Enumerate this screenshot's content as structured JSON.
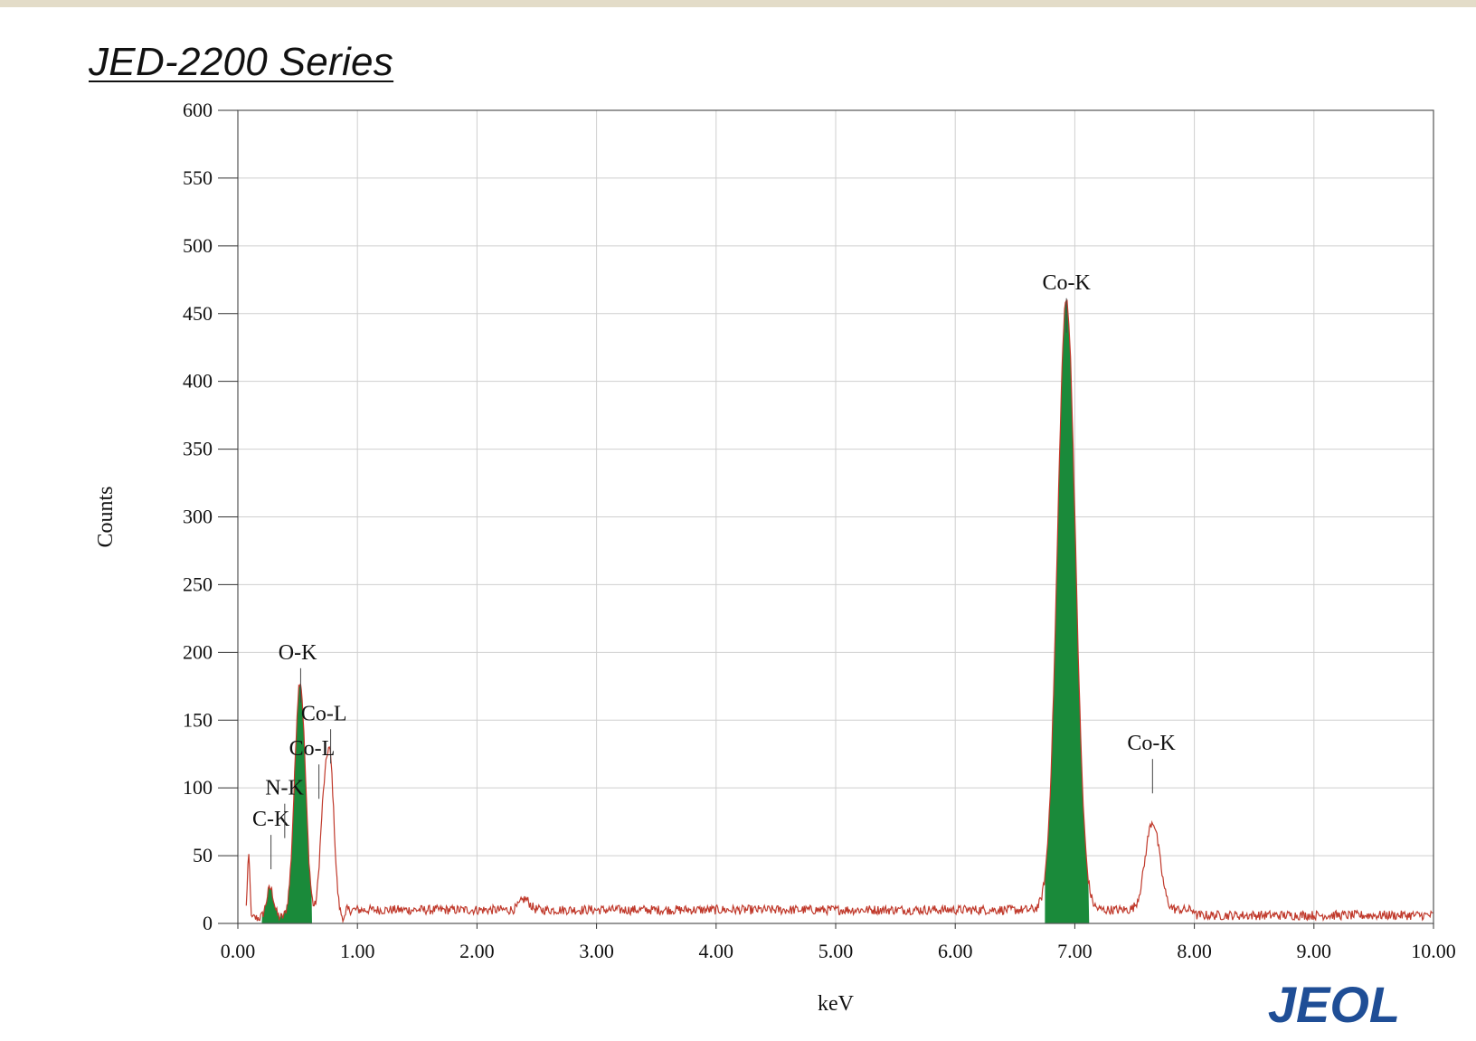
{
  "header": {
    "title": "JED-2200 Series"
  },
  "logo": {
    "text": "JEOL",
    "color": "#1f4e96"
  },
  "chart_data": {
    "type": "area",
    "xlabel": "keV",
    "ylabel": "Counts",
    "xlim": [
      0,
      10
    ],
    "ylim": [
      0,
      600
    ],
    "x_ticks": [
      "0.00",
      "1.00",
      "2.00",
      "3.00",
      "4.00",
      "5.00",
      "6.00",
      "7.00",
      "8.00",
      "9.00",
      "10.00"
    ],
    "y_ticks": [
      "0",
      "50",
      "100",
      "150",
      "200",
      "250",
      "300",
      "350",
      "400",
      "450",
      "500",
      "550",
      "600"
    ],
    "grid": true,
    "colors": {
      "spectrum": "#c0392b",
      "peak_fill": "#1a8a3a",
      "grid": "#cfcfcf"
    },
    "spectrum_baseline": 10,
    "spectrum_peaks": [
      {
        "x": 0.09,
        "y": 48,
        "sigma": 0.012
      },
      {
        "x": 0.27,
        "y": 22,
        "sigma": 0.03
      },
      {
        "x": 0.52,
        "y": 175,
        "sigma": 0.045
      },
      {
        "x": 0.71,
        "y": 60,
        "sigma": 0.03
      },
      {
        "x": 0.77,
        "y": 115,
        "sigma": 0.035
      },
      {
        "x": 2.4,
        "y": 8,
        "sigma": 0.04
      },
      {
        "x": 6.93,
        "y": 450,
        "sigma": 0.075
      },
      {
        "x": 7.65,
        "y": 65,
        "sigma": 0.06
      }
    ],
    "filled_regions": [
      {
        "from": 0.2,
        "to": 0.62
      },
      {
        "from": 6.75,
        "to": 7.12
      }
    ],
    "peak_labels": [
      {
        "label": "C-K",
        "x": 0.277,
        "y": 72,
        "marker_x": 0.277
      },
      {
        "label": "N-K",
        "x": 0.39,
        "y": 95,
        "marker_x": 0.392
      },
      {
        "label": "O-K",
        "x": 0.5,
        "y": 195,
        "marker_x": 0.525
      },
      {
        "label": "Co-L",
        "x": 0.72,
        "y": 150,
        "marker_x": 0.776
      },
      {
        "label": "Co-L",
        "x": 0.62,
        "y": 124,
        "marker_x": 0.678
      },
      {
        "label": "Co-K",
        "x": 6.93,
        "y": 468,
        "marker_x": 6.93
      },
      {
        "label": "Co-K",
        "x": 7.64,
        "y": 128,
        "marker_x": 7.65
      }
    ]
  }
}
